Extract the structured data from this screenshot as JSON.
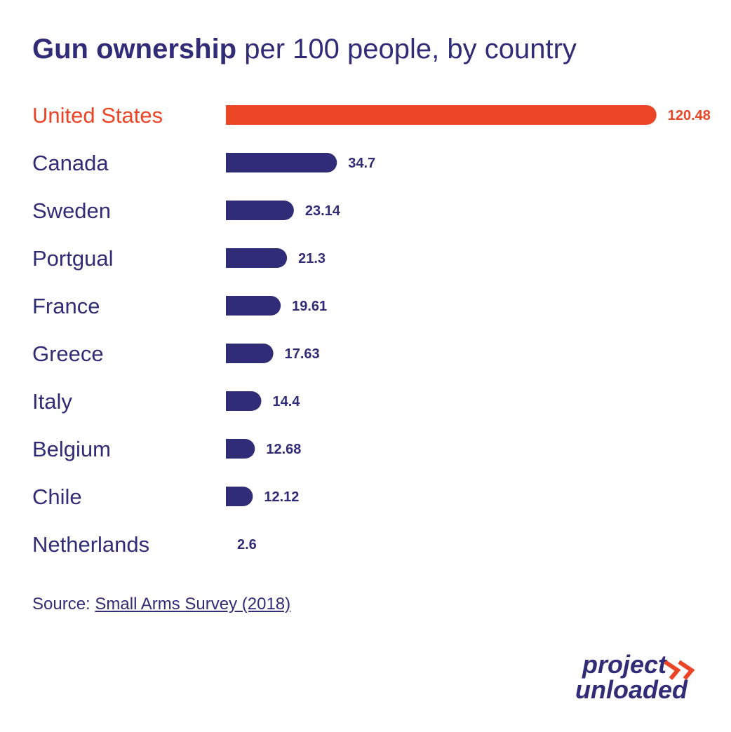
{
  "chart_data": {
    "type": "bar",
    "orientation": "horizontal",
    "title_bold": "Gun ownership",
    "title_rest": "per 100 people, by country",
    "categories": [
      "United States",
      "Canada",
      "Sweden",
      "Portgual",
      "France",
      "Greece",
      "Italy",
      "Belgium",
      "Chile",
      "Netherlands"
    ],
    "values": [
      120.48,
      34.7,
      23.14,
      21.3,
      19.61,
      17.63,
      14.4,
      12.68,
      12.12,
      2.6
    ],
    "value_labels": [
      "120.48",
      "34.7",
      "23.14",
      "21.3",
      "19.61",
      "17.63",
      "14.4",
      "12.68",
      "12.12",
      "2.6"
    ],
    "highlight_index": 0,
    "colors": {
      "highlight": "#ec4526",
      "default": "#312c77"
    }
  },
  "source": {
    "label": "Source:",
    "link_text": "Small Arms Survey (2018)"
  },
  "logo": {
    "line1": "project",
    "line2": "unloaded"
  }
}
